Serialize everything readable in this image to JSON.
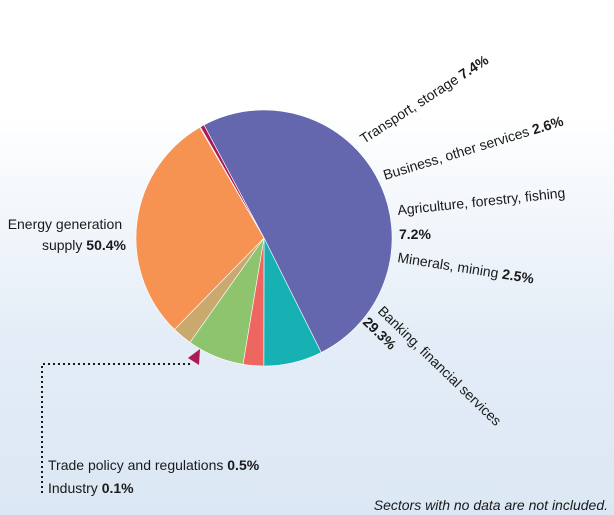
{
  "chart_data": {
    "type": "pie",
    "unit": "%",
    "slices": [
      {
        "name": "Energy generation supply",
        "line1": "Energy generation",
        "line2": "supply",
        "value": 50.4,
        "value_label": "50.4%",
        "color": "#6466ae"
      },
      {
        "name": "Transport, storage",
        "value": 7.4,
        "value_label": "7.4%",
        "color": "#17b1b4"
      },
      {
        "name": "Business, other services",
        "value": 2.6,
        "value_label": "2.6%",
        "color": "#ef6560"
      },
      {
        "name": "Agriculture, forestry, fishing",
        "value": 7.2,
        "value_label": "7.2%",
        "color": "#8dc46d"
      },
      {
        "name": "Minerals, mining",
        "value": 2.5,
        "value_label": "2.5%",
        "color": "#c9a96e"
      },
      {
        "name": "Banking, financial services",
        "value": 29.3,
        "value_label": "29.3%",
        "color": "#f69252"
      },
      {
        "name": "Industry",
        "value": 0.1,
        "value_label": "0.1%",
        "color": "#6e2a63"
      },
      {
        "name": "Trade policy and regulations",
        "value": 0.5,
        "value_label": "0.5%",
        "color": "#ac1a55"
      }
    ],
    "note": "Sectors with no data are not included."
  }
}
